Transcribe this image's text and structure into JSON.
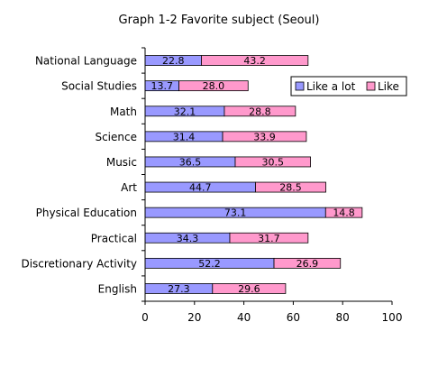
{
  "chart_data": {
    "type": "bar",
    "orientation": "horizontal",
    "stacked": true,
    "title": "Graph 1-2  Favorite subject (Seoul)",
    "xlabel": "",
    "ylabel": "",
    "xlim": [
      0,
      100
    ],
    "ticks": [
      0,
      20,
      40,
      60,
      80,
      100
    ],
    "grid": false,
    "legend_position": "top-right",
    "categories": [
      "National Language",
      "Social Studies",
      "Math",
      "Science",
      "Music",
      "Art",
      "Physical Education",
      "Practical",
      "Discretionary Activity",
      "English"
    ],
    "series": [
      {
        "name": "Like a lot",
        "color": "#9999ff",
        "values": [
          22.8,
          13.7,
          32.1,
          31.4,
          36.5,
          44.7,
          73.1,
          34.3,
          52.2,
          27.3
        ],
        "labels": [
          "22.8",
          "13.7",
          "32.1",
          "31.4",
          "36.5",
          "44.7",
          "73.1",
          "34.3",
          "52.2",
          "27.3"
        ]
      },
      {
        "name": "Like",
        "color": "#ff99cc",
        "values": [
          43.2,
          28.0,
          28.8,
          33.9,
          30.5,
          28.5,
          14.8,
          31.7,
          26.9,
          29.6
        ],
        "labels": [
          "43.2",
          "28.0",
          "28.8",
          "33.9",
          "30.5",
          "28.5",
          "14.8",
          "31.7",
          "26.9",
          "29.6"
        ]
      }
    ]
  }
}
